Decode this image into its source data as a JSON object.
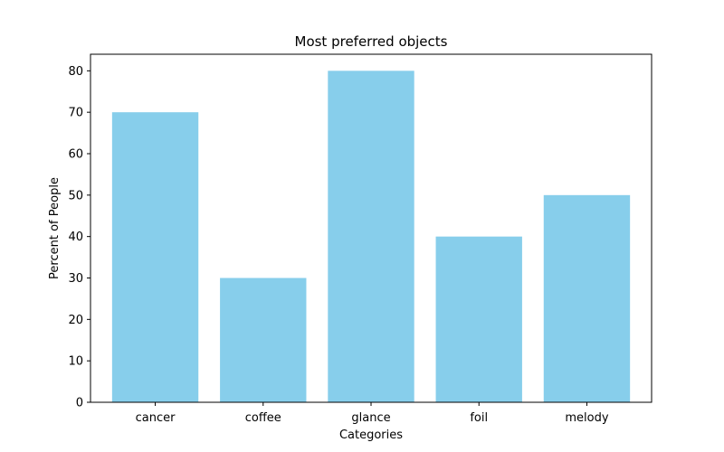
{
  "chart_data": {
    "type": "bar",
    "title": "Most preferred objects",
    "xlabel": "Categories",
    "ylabel": "Percent of People",
    "categories": [
      "cancer",
      "coffee",
      "glance",
      "foil",
      "melody"
    ],
    "values": [
      70,
      30,
      80,
      40,
      50
    ],
    "ylim": [
      0,
      84
    ],
    "yticks": [
      0,
      10,
      20,
      30,
      40,
      50,
      60,
      70,
      80
    ],
    "bar_color": "#87CEEB",
    "grid": false,
    "legend": "none"
  }
}
